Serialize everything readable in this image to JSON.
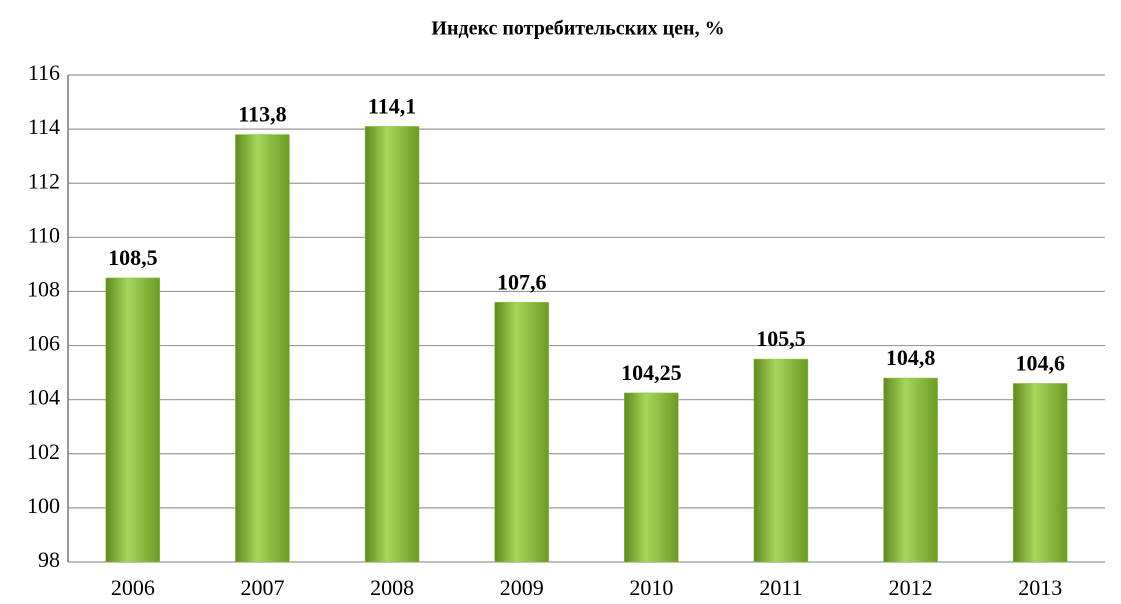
{
  "chart_data": {
    "type": "bar",
    "title": "Индекс потребительских цен, %",
    "categories": [
      "2006",
      "2007",
      "2008",
      "2009",
      "2010",
      "2011",
      "2012",
      "2013"
    ],
    "values": [
      108.5,
      113.8,
      114.1,
      107.6,
      104.25,
      105.5,
      104.8,
      104.6
    ],
    "value_labels": [
      "108,5",
      "113,8",
      "114,1",
      "107,6",
      "104,25",
      "105,5",
      "104,8",
      "104,6"
    ],
    "color": "#8cc63f",
    "ylim": [
      98,
      116
    ],
    "yticks": [
      98,
      100,
      102,
      104,
      106,
      108,
      110,
      112,
      114,
      116
    ],
    "grid": true
  }
}
